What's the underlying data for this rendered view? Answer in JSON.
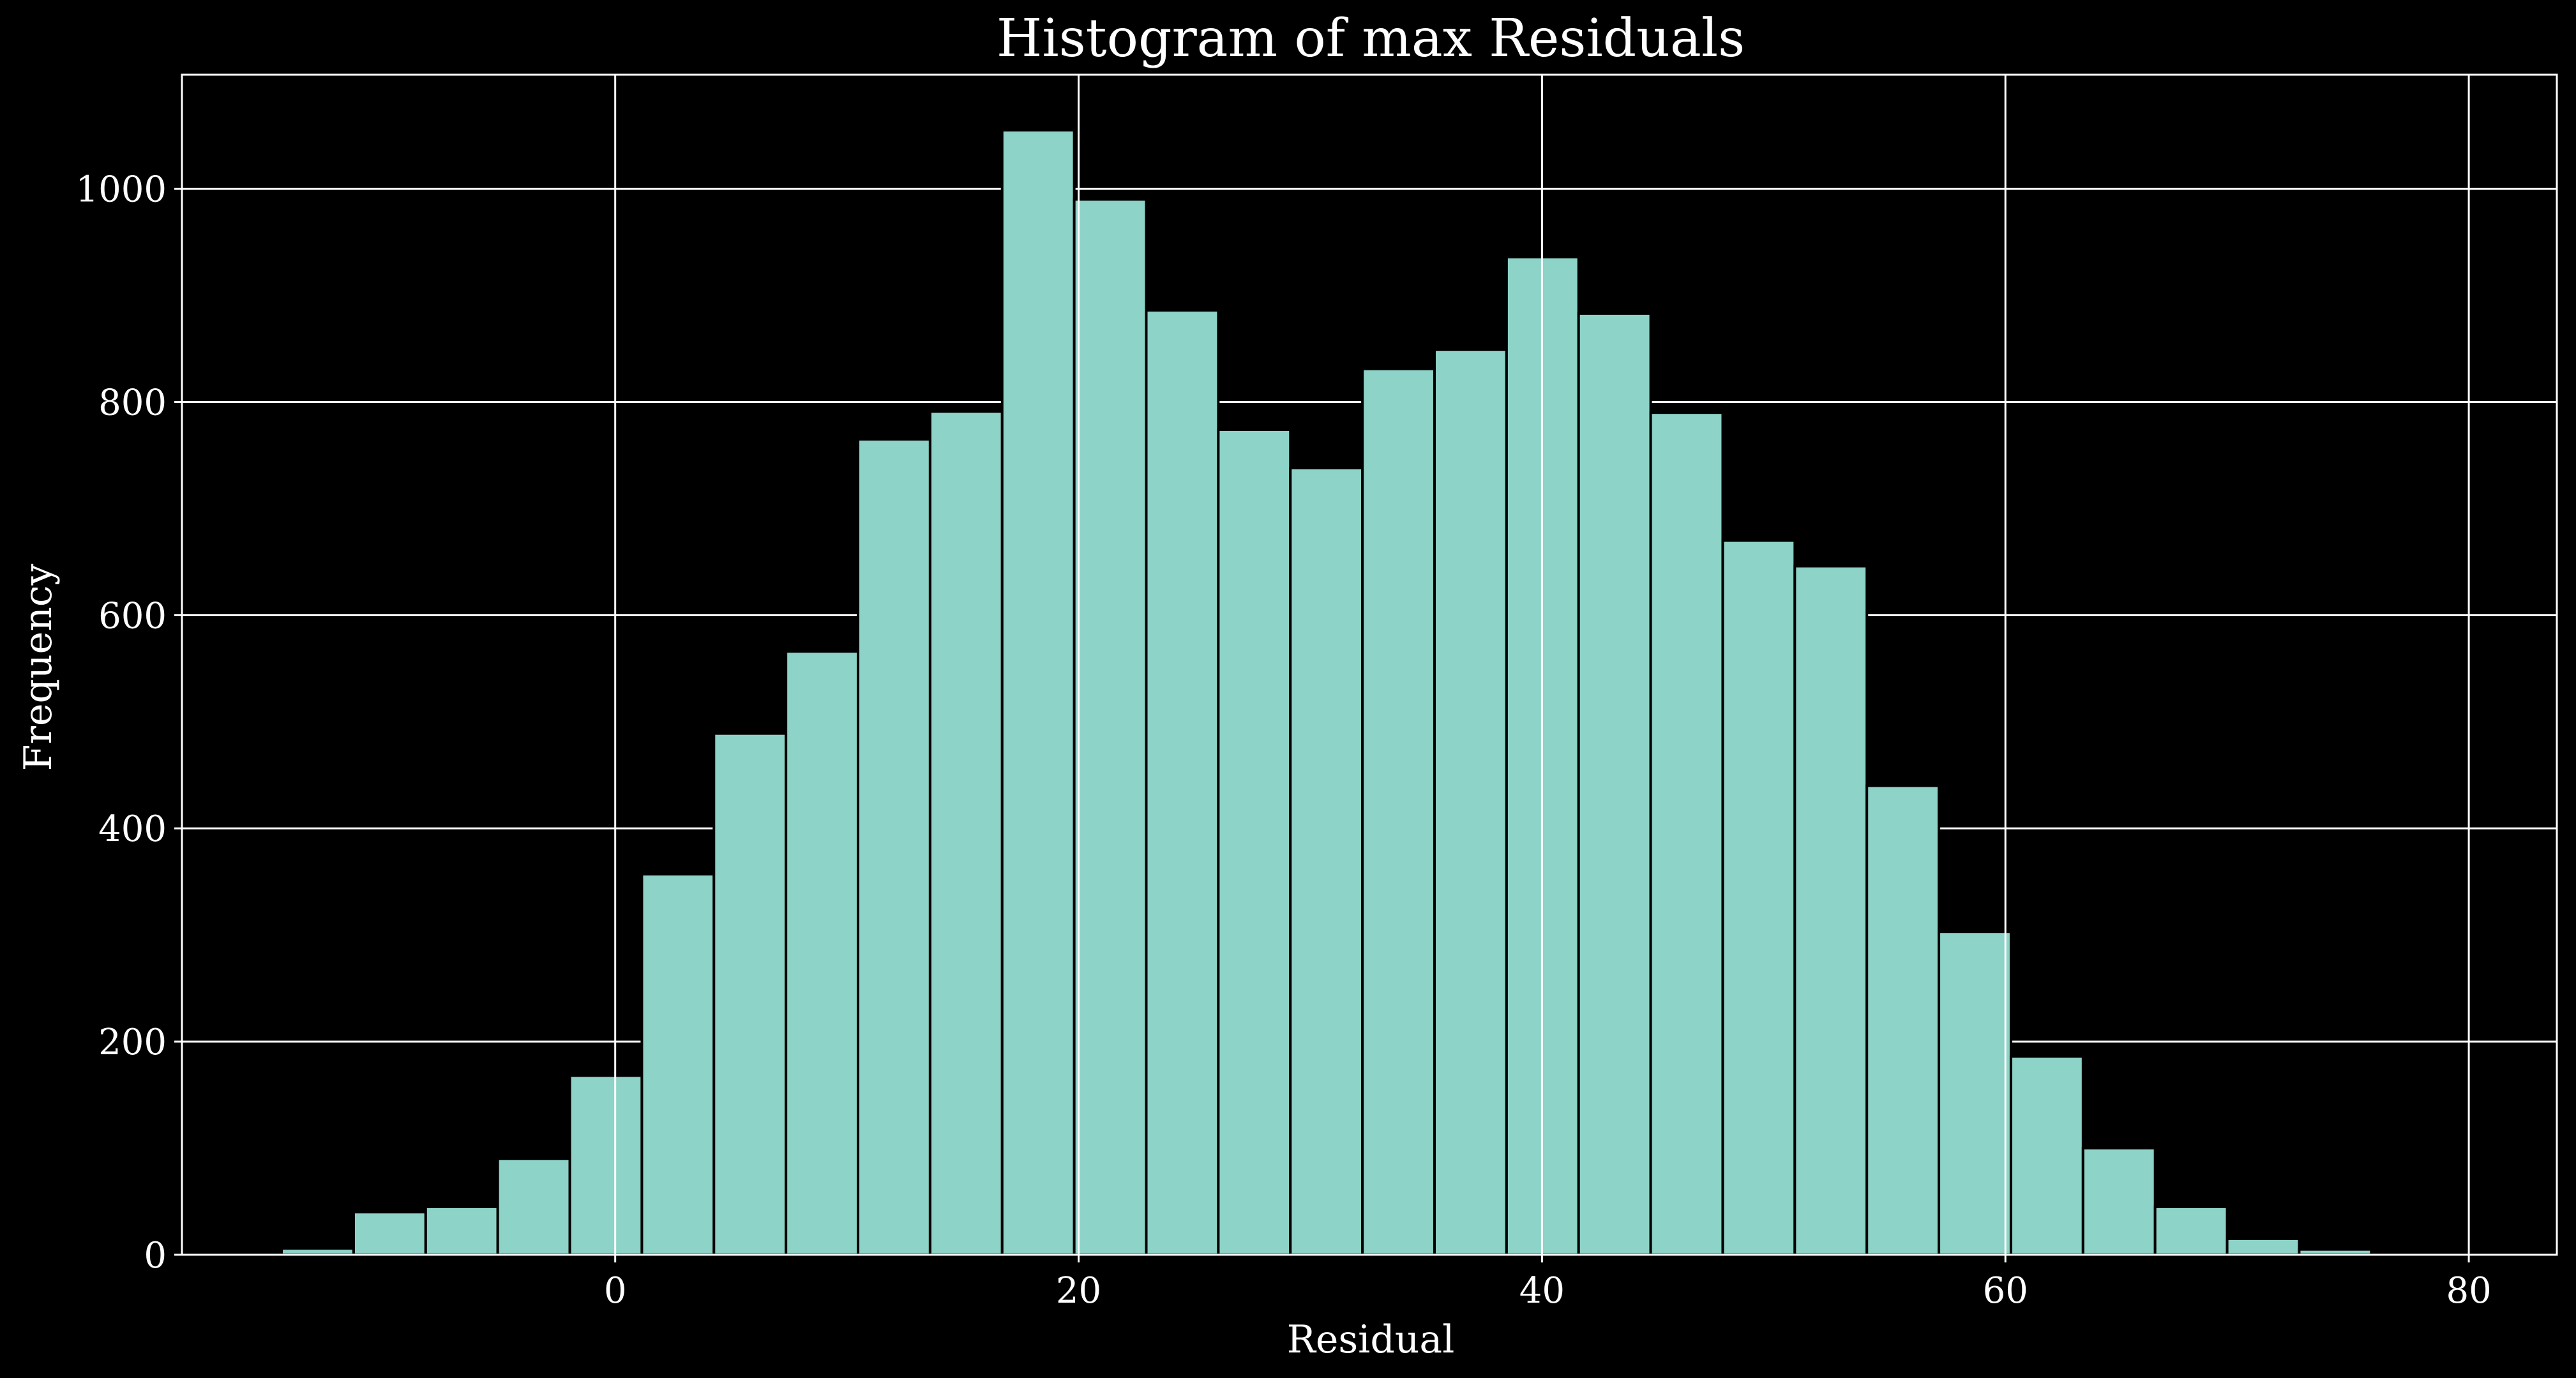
{
  "chart_data": {
    "type": "bar",
    "title": "Histogram of max Residuals",
    "xlabel": "Residual",
    "ylabel": "Frequency",
    "xlim": [
      -18.7,
      83.8
    ],
    "ylim": [
      0,
      1107
    ],
    "xticks": [
      0,
      20,
      40,
      60,
      80
    ],
    "yticks": [
      0,
      200,
      400,
      600,
      800,
      1000
    ],
    "grid": true,
    "bar_color": "#8dd3c7",
    "edge_color": "#000000",
    "background_color": "#000000",
    "foreground_color": "#ffffff",
    "bin_edges": [
      -14.4,
      -11.29,
      -8.18,
      -5.07,
      -1.96,
      1.15,
      4.26,
      7.37,
      10.48,
      13.59,
      16.7,
      19.81,
      22.92,
      26.03,
      29.14,
      32.25,
      35.36,
      38.47,
      41.58,
      44.69,
      47.8,
      50.91,
      54.02,
      57.13,
      60.24,
      63.35,
      66.46,
      69.57,
      72.68,
      75.79
    ],
    "values": [
      6,
      40,
      45,
      90,
      168,
      357,
      489,
      566,
      765,
      791,
      1055,
      990,
      886,
      774,
      738,
      831,
      849,
      936,
      883,
      790,
      670,
      646,
      440,
      303,
      186,
      100,
      45,
      15,
      5
    ]
  }
}
